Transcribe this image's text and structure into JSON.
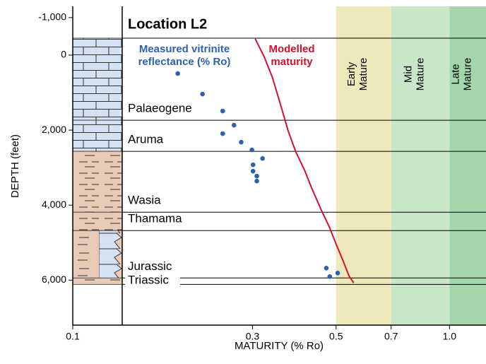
{
  "chart_data": {
    "type": "scatter",
    "title": "Location L2",
    "xlabel": "MATURITY (% Ro)",
    "ylabel": "DEPTH (feet)",
    "log_x": true,
    "y_inverted": true,
    "xlim": [
      0.1,
      1.25
    ],
    "ylim": [
      -1300,
      7200
    ],
    "xticks": [
      0.1,
      0.3,
      0.5,
      0.7,
      {
        "value": 1,
        "label": "1.0"
      }
    ],
    "yticks": [
      {
        "value": -1000,
        "label": "-1,000"
      },
      0,
      {
        "value": 2000,
        "label": "2,000"
      },
      {
        "value": 4000,
        "label": "4,000"
      },
      {
        "value": 6000,
        "label": "6,000"
      }
    ],
    "zones": [
      {
        "label": [
          "Early",
          "Mature"
        ],
        "from": 0.5,
        "to": 0.7,
        "color": "#efe8bb"
      },
      {
        "label": [
          "Mid",
          "Mature"
        ],
        "from": 0.7,
        "to": 1,
        "color": "#c9e6c9"
      },
      {
        "label": [
          "Late",
          "Mature"
        ],
        "from": 1,
        "to": 1.25,
        "color": "#a3d6ab"
      }
    ],
    "formations": [
      {
        "name": "Palaeogene",
        "top": -453,
        "base": 1736,
        "fill": "url(#brick)"
      },
      {
        "name": "Aruma",
        "top": 1736,
        "base": 2566,
        "fill": "url(#brick)"
      },
      {
        "name": "Wasia",
        "top": 2566,
        "base": 4189,
        "fill": "url(#shale)"
      },
      {
        "name": "Thamama",
        "top": 4189,
        "base": 4679,
        "fill": "url(#shale)"
      },
      {
        "name": "Jurassic",
        "top": 4679,
        "base": 5943,
        "fill": "url(#mixed)"
      },
      {
        "name": "Triassic",
        "top": 5943,
        "base": 6113,
        "fill": "url(#shale)"
      }
    ],
    "series": [
      {
        "name": [
          "Measured vitrinite",
          "reflectance (% Ro)"
        ],
        "color": "#2e62ad",
        "kind": "points",
        "x": [
          0.19,
          0.221,
          0.25,
          0.268,
          0.25,
          0.28,
          0.299,
          0.319,
          0.301,
          0.301,
          0.308,
          0.308,
          0.471,
          0.505,
          0.481
        ],
        "values": [
          491,
          1038,
          1491,
          1868,
          2094,
          2321,
          2528,
          2755,
          2925,
          3094,
          3226,
          3358,
          5679,
          5811,
          5906
        ]
      },
      {
        "name": [
          "Modelled",
          "maturity"
        ],
        "color": "#d3102e",
        "kind": "line",
        "x": [
          0.305,
          0.322,
          0.339,
          0.357,
          0.373,
          0.391,
          0.412,
          0.43,
          0.455,
          0.479,
          0.5,
          0.523,
          0.541,
          0.557
        ],
        "values": [
          -434,
          38,
          604,
          1358,
          2019,
          2585,
          3057,
          3528,
          4094,
          4566,
          5038,
          5509,
          5887,
          6075
        ]
      }
    ]
  }
}
